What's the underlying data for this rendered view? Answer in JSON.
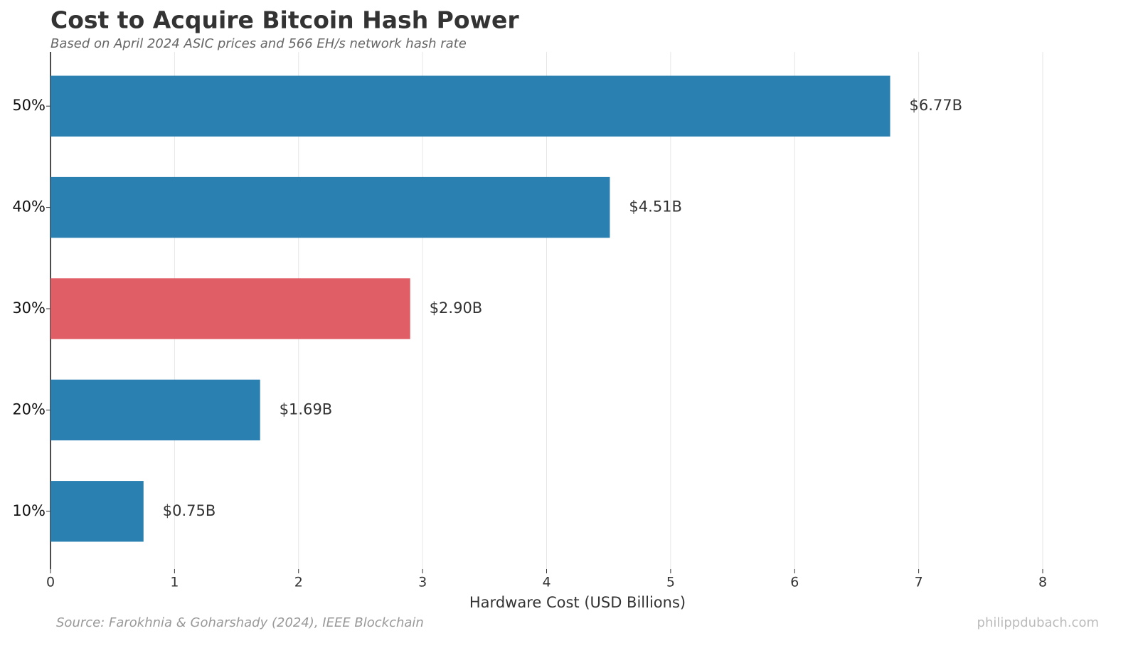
{
  "chart_data": {
    "type": "hbar",
    "title": "Cost to Acquire Bitcoin Hash Power",
    "subtitle": "Based on April 2024 ASIC prices and 566 EH/s network hash rate",
    "x_label": "Hardware Cost (USD Billions)",
    "source": "Source: Farokhnia & Goharshady (2024), IEEE Blockchain",
    "watermark": "philippdubach.com",
    "categories": [
      "10%",
      "20%",
      "30%",
      "40%",
      "50%"
    ],
    "values": [
      0.75,
      1.69,
      2.9,
      4.51,
      6.77
    ],
    "value_labels": [
      "$0.75B",
      "$1.69B",
      "$2.90B",
      "$4.51B",
      "$6.77B"
    ],
    "colors": [
      "#2780b0",
      "#2780b0",
      "#e05c63",
      "#2780b0",
      "#2780b0"
    ],
    "xlim": [
      0,
      8
    ],
    "xticks": [
      0,
      1,
      2,
      3,
      4,
      5,
      6,
      7,
      8
    ],
    "grid": true
  }
}
